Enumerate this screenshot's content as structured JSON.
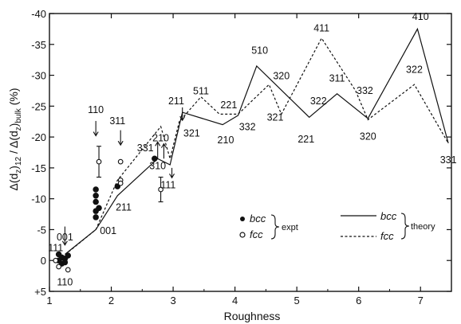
{
  "chart_data": {
    "type": "scatter",
    "xlabel": "Roughness",
    "ylabel": "Δ(dz)12 / Δ(dz)bulk (%)",
    "ylabel_parts": {
      "pre": "Δ(d",
      "z1": "z",
      "mid": ")",
      "sub12": "12",
      "slash": " / Δ(d",
      "z2": "z",
      "close": ")",
      "bulk": "bulk",
      "unit": " (%)"
    },
    "xlim": [
      1,
      7.5
    ],
    "ylim": [
      -40,
      5
    ],
    "x_ticks": [
      1,
      2,
      3,
      4,
      5,
      6,
      7
    ],
    "y_ticks": [
      {
        "value": -40,
        "label": "-40"
      },
      {
        "value": -35,
        "label": "-35"
      },
      {
        "value": -30,
        "label": "-30"
      },
      {
        "value": -25,
        "label": "-25"
      },
      {
        "value": -20,
        "label": "-20"
      },
      {
        "value": -15,
        "label": "-15"
      },
      {
        "value": -10,
        "label": "-10"
      },
      {
        "value": -5,
        "label": "-5"
      },
      {
        "value": 0,
        "label": "0"
      },
      {
        "value": 5,
        "label": "+5"
      }
    ],
    "series": [
      {
        "name": "bcc theory",
        "style": "solid",
        "x": [
          1.25,
          1.75,
          2.1,
          2.75,
          2.95,
          3.15,
          3.8,
          4.05,
          4.35,
          5.2,
          5.65,
          6.15,
          6.95,
          7.45
        ],
        "y": [
          -1,
          -5,
          -10.5,
          -16.5,
          -15.5,
          -24,
          -22,
          -23.5,
          -31.5,
          -23.2,
          -27,
          -23,
          -37.5,
          -19
        ]
      },
      {
        "name": "fcc theory",
        "style": "dashed",
        "x": [
          1.2,
          1.75,
          2.1,
          2.8,
          2.95,
          3.1,
          3.45,
          3.75,
          4.05,
          4.55,
          4.75,
          5.4,
          5.95,
          6.15,
          6.9,
          7.45
        ],
        "y": [
          -0.5,
          -5,
          -13,
          -21.7,
          -16.5,
          -22.5,
          -26.5,
          -23.7,
          -23.7,
          -28.5,
          -23.7,
          -36,
          -27.5,
          -22.8,
          -28.5,
          -19
        ]
      },
      {
        "name": "bcc expt",
        "marker": "filled",
        "x": [
          1.15,
          1.15,
          1.2,
          1.2,
          1.25,
          1.25,
          1.3,
          1.75,
          1.75,
          1.75,
          1.75,
          1.75,
          1.8,
          2.1,
          2.7
        ],
        "y": [
          -1,
          0,
          -0.5,
          0.5,
          -0.3,
          0.3,
          -0.8,
          -7,
          -8,
          -9.5,
          -10.5,
          -11.5,
          -8.5,
          -12,
          -16.5
        ]
      },
      {
        "name": "fcc expt",
        "marker": "open",
        "x": [
          1.1,
          1.15,
          1.3,
          1.8,
          2.15,
          2.15,
          2.15,
          2.8
        ],
        "y": [
          0,
          1,
          1.5,
          -16,
          -13,
          -16,
          -12.5,
          -11.5
        ],
        "yerr": [
          0,
          0,
          0,
          2.5,
          0,
          0,
          0,
          2
        ]
      }
    ],
    "annotations": [
      {
        "text": "111",
        "x": 1.1,
        "y": -2
      },
      {
        "text": "001",
        "x": 1.25,
        "y": -3.8
      },
      {
        "text": "110",
        "x": 1.25,
        "y": 3.5
      },
      {
        "text": "001",
        "x": 1.95,
        "y": -4.8
      },
      {
        "text": "211",
        "x": 2.2,
        "y": -8.6
      },
      {
        "text": "110",
        "x": 1.75,
        "y": -24.4
      },
      {
        "text": "311",
        "x": 2.1,
        "y": -22.6
      },
      {
        "text": "331",
        "x": 2.55,
        "y": -18.2
      },
      {
        "text": "210",
        "x": 2.8,
        "y": -19.8
      },
      {
        "text": "310",
        "x": 2.75,
        "y": -15.3
      },
      {
        "text": "111",
        "x": 2.92,
        "y": -12.2
      },
      {
        "text": "211",
        "x": 3.05,
        "y": -25.8
      },
      {
        "text": "511",
        "x": 3.45,
        "y": -27.4
      },
      {
        "text": "321",
        "x": 3.3,
        "y": -20.6
      },
      {
        "text": "221",
        "x": 3.9,
        "y": -25.2
      },
      {
        "text": "210",
        "x": 3.85,
        "y": -19.5
      },
      {
        "text": "332",
        "x": 4.2,
        "y": -21.6
      },
      {
        "text": "510",
        "x": 4.4,
        "y": -34.0
      },
      {
        "text": "320",
        "x": 4.75,
        "y": -29.9
      },
      {
        "text": "321",
        "x": 4.65,
        "y": -23.2
      },
      {
        "text": "221",
        "x": 5.15,
        "y": -19.6
      },
      {
        "text": "322",
        "x": 5.35,
        "y": -25.8
      },
      {
        "text": "411",
        "x": 5.4,
        "y": -37.6
      },
      {
        "text": "311",
        "x": 5.65,
        "y": -29.5
      },
      {
        "text": "332",
        "x": 6.1,
        "y": -27.5
      },
      {
        "text": "320",
        "x": 6.15,
        "y": -20.1
      },
      {
        "text": "410",
        "x": 7.0,
        "y": -39.5
      },
      {
        "text": "322",
        "x": 6.9,
        "y": -30.9
      },
      {
        "text": "331",
        "x": 7.45,
        "y": -16.3
      }
    ],
    "arrows": [
      {
        "x": 1.25,
        "y_from": -5.5,
        "y_to": -2.5
      },
      {
        "x": 1.75,
        "y_from": -22.6,
        "y_to": -20.2
      },
      {
        "x": 2.15,
        "y_from": -21.1,
        "y_to": -18.7
      },
      {
        "x": 2.75,
        "y_from": -16.5,
        "y_to": -19.2
      },
      {
        "x": 2.85,
        "y_from": -16.5,
        "y_to": -18.9
      },
      {
        "x": 2.98,
        "y_from": -15,
        "y_to": -13.4
      },
      {
        "x": 3.15,
        "y_from": -24.8,
        "y_to": -22.7
      }
    ],
    "legend": {
      "placement": "bottom-center",
      "bcc_expt": "bcc",
      "fcc_expt": "fcc",
      "expt_label": "expt",
      "bcc_theory": "bcc",
      "fcc_theory": "fcc",
      "theory_label": "theory"
    }
  }
}
